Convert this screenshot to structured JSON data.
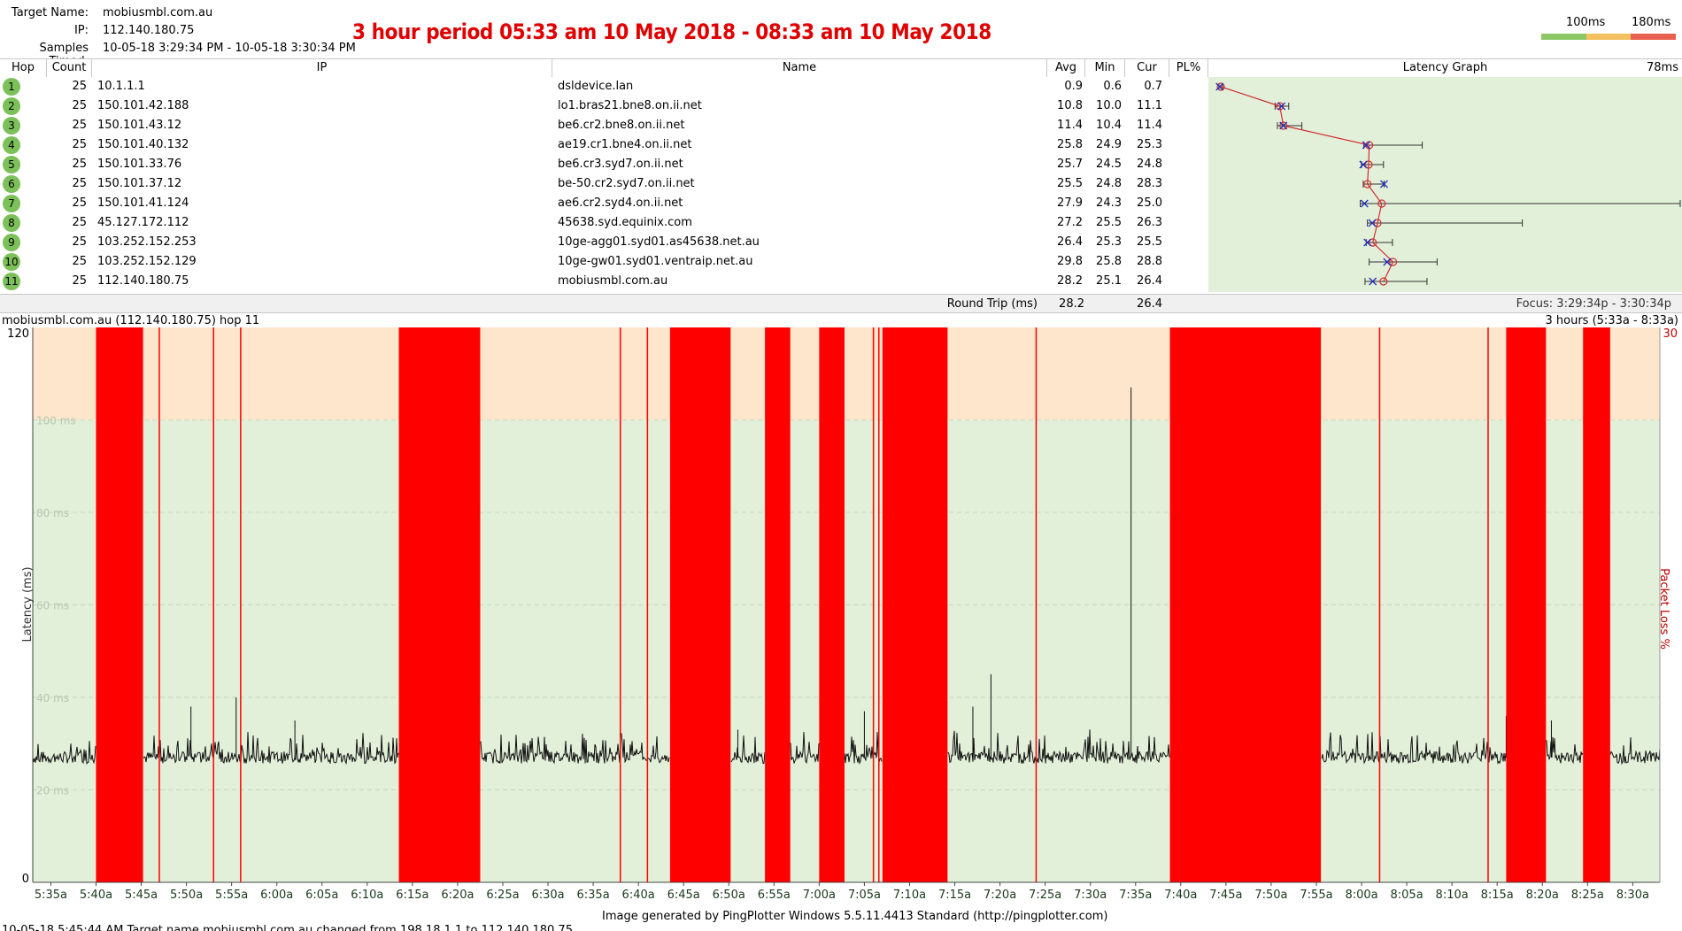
{
  "header": {
    "target_name_label": "Target Name:",
    "target_name": "mobiusmbl.com.au",
    "ip_label": "IP:",
    "ip": "112.140.180.75",
    "samples_label": "Samples Timed:",
    "samples": "10-05-18 3:29:34 PM - 10-05-18 3:30:34 PM",
    "period_text": "3 hour period 05:33 am 10 May 2018 - 08:33 am 10 May 2018",
    "legend_100": "100ms",
    "legend_180": "180ms",
    "legend_colors": [
      "#8cc866",
      "#f5c060",
      "#e86050"
    ]
  },
  "table": {
    "columns": {
      "hop": "Hop",
      "count": "Count",
      "ip": "IP",
      "name": "Name",
      "avg": "Avg",
      "min": "Min",
      "cur": "Cur",
      "pl": "PL%",
      "graph": "Latency Graph",
      "graph_scale": "78ms"
    },
    "rows": [
      {
        "hop": "1",
        "count": "25",
        "ip": "10.1.1.1",
        "name": "dsldevice.lan",
        "avg": "0.9",
        "min": "0.6",
        "cur": "0.7",
        "pl": ""
      },
      {
        "hop": "2",
        "count": "25",
        "ip": "150.101.42.188",
        "name": "lo1.bras21.bne8.on.ii.net",
        "avg": "10.8",
        "min": "10.0",
        "cur": "11.1",
        "pl": ""
      },
      {
        "hop": "3",
        "count": "25",
        "ip": "150.101.43.12",
        "name": "be6.cr2.bne8.on.ii.net",
        "avg": "11.4",
        "min": "10.4",
        "cur": "11.4",
        "pl": ""
      },
      {
        "hop": "4",
        "count": "25",
        "ip": "150.101.40.132",
        "name": "ae19.cr1.bne4.on.ii.net",
        "avg": "25.8",
        "min": "24.9",
        "cur": "25.3",
        "pl": ""
      },
      {
        "hop": "5",
        "count": "25",
        "ip": "150.101.33.76",
        "name": "be6.cr3.syd7.on.ii.net",
        "avg": "25.7",
        "min": "24.5",
        "cur": "24.8",
        "pl": ""
      },
      {
        "hop": "6",
        "count": "25",
        "ip": "150.101.37.12",
        "name": "be-50.cr2.syd7.on.ii.net",
        "avg": "25.5",
        "min": "24.8",
        "cur": "28.3",
        "pl": ""
      },
      {
        "hop": "7",
        "count": "25",
        "ip": "150.101.41.124",
        "name": "ae6.cr2.syd4.on.ii.net",
        "avg": "27.9",
        "min": "24.3",
        "cur": "25.0",
        "pl": ""
      },
      {
        "hop": "8",
        "count": "25",
        "ip": "45.127.172.112",
        "name": "45638.syd.equinix.com",
        "avg": "27.2",
        "min": "25.5",
        "cur": "26.3",
        "pl": ""
      },
      {
        "hop": "9",
        "count": "25",
        "ip": "103.252.152.253",
        "name": "10ge-agg01.syd01.as45638.net.au",
        "avg": "26.4",
        "min": "25.3",
        "cur": "25.5",
        "pl": ""
      },
      {
        "hop": "10",
        "count": "25",
        "ip": "103.252.152.129",
        "name": "10ge-gw01.syd01.ventraip.net.au",
        "avg": "29.8",
        "min": "25.8",
        "cur": "28.8",
        "pl": ""
      },
      {
        "hop": "11",
        "count": "25",
        "ip": "112.140.180.75",
        "name": "mobiusmbl.com.au",
        "avg": "28.2",
        "min": "25.1",
        "cur": "26.4",
        "pl": ""
      }
    ],
    "summary": {
      "label": "Round Trip (ms)",
      "avg": "28.2",
      "cur": "26.4",
      "focus": "Focus: 3:29:34p - 3:30:34p"
    }
  },
  "mini_graph": {
    "max_ms": 78,
    "hops": [
      {
        "avg": 0.9,
        "min": 0.6,
        "max": 1.2,
        "cur": 0.7
      },
      {
        "avg": 10.8,
        "min": 10.0,
        "max": 12.3,
        "cur": 11.1
      },
      {
        "avg": 11.4,
        "min": 10.4,
        "max": 14.5,
        "cur": 11.4
      },
      {
        "avg": 25.8,
        "min": 24.9,
        "max": 34.7,
        "cur": 25.3
      },
      {
        "avg": 25.7,
        "min": 24.5,
        "max": 28.2,
        "cur": 24.8
      },
      {
        "avg": 25.5,
        "min": 24.8,
        "max": 28.3,
        "cur": 28.3
      },
      {
        "avg": 27.9,
        "min": 24.3,
        "max": 78.0,
        "cur": 25.0
      },
      {
        "avg": 27.2,
        "min": 25.5,
        "max": 51.5,
        "cur": 26.3
      },
      {
        "avg": 26.4,
        "min": 25.3,
        "max": 29.7,
        "cur": 25.5
      },
      {
        "avg": 29.8,
        "min": 25.8,
        "max": 37.2,
        "cur": 28.8
      },
      {
        "avg": 28.2,
        "min": 25.1,
        "max": 35.5,
        "cur": 26.4
      }
    ]
  },
  "chart": {
    "title": "mobiusmbl.com.au (112.140.180.75) hop 11",
    "duration": "3 hours (5:33a - 8:33a)",
    "y_top_label": "120",
    "y_bottom_label": "0",
    "pl_top_label": "30",
    "ylabel": "Latency (ms)",
    "pl_label": "Packet Loss %",
    "footer": "Image generated by PingPlotter Windows 5.5.11.4413 Standard (http://pingplotter.com)",
    "log_text": "10-05-18 5:45:44 AM Target name mobiusmbl.com.au changed from 198.18.1.1 to 112.140.180.75"
  },
  "chart_data": {
    "type": "line",
    "title": "3 hour period 05:33 am 10 May 2018 - 08:33 am 10 May 2018",
    "xlabel": "",
    "ylabel": "Latency (ms)",
    "ylim": [
      0,
      120
    ],
    "y2label": "Packet Loss %",
    "y2lim": [
      0,
      30
    ],
    "x_ticks": [
      "5:35a",
      "5:40a",
      "5:45a",
      "5:50a",
      "5:55a",
      "6:00a",
      "6:05a",
      "6:10a",
      "6:15a",
      "6:20a",
      "6:25a",
      "6:30a",
      "6:35a",
      "6:40a",
      "6:45a",
      "6:50a",
      "6:55a",
      "7:00a",
      "7:05a",
      "7:10a",
      "7:15a",
      "7:20a",
      "7:25a",
      "7:30a",
      "7:35a",
      "7:40a",
      "7:45a",
      "7:50a",
      "7:55a",
      "8:00a",
      "8:05a",
      "8:10a",
      "8:15a",
      "8:20a",
      "8:25a",
      "8:30a"
    ],
    "y_gridlines": [
      "20 ms",
      "40 ms",
      "60 ms",
      "80 ms",
      "100 ms"
    ],
    "x_range_minutes": [
      33,
      213
    ],
    "threshold_ms": 100,
    "baseline_ms": 27,
    "loss_bands_minutes": [
      [
        40,
        45.2
      ],
      [
        73.5,
        82.5
      ],
      [
        103.5,
        110.2
      ],
      [
        114,
        116.8
      ],
      [
        120,
        122.8
      ],
      [
        127,
        134.2
      ],
      [
        158.8,
        175.5
      ],
      [
        196,
        200.4
      ],
      [
        204.5,
        207.5
      ]
    ],
    "loss_lines_minutes": [
      47,
      53,
      56,
      98,
      101,
      126,
      126.6,
      144,
      182,
      194
    ],
    "spikes": [
      [
        50.5,
        38
      ],
      [
        55.5,
        40
      ],
      [
        62,
        35
      ],
      [
        74,
        36
      ],
      [
        111,
        33
      ],
      [
        116,
        34
      ],
      [
        125,
        37
      ],
      [
        137,
        38
      ],
      [
        139,
        45
      ],
      [
        154.5,
        107
      ],
      [
        160,
        37
      ],
      [
        175,
        34
      ],
      [
        196,
        36
      ],
      [
        201,
        35
      ]
    ]
  },
  "x_tick_labels": [
    "5:35a",
    "5:40a",
    "5:45a",
    "5:50a",
    "5:55a",
    "6:00a",
    "6:05a",
    "6:10a",
    "6:15a",
    "6:20a",
    "6:25a",
    "6:30a",
    "6:35a",
    "6:40a",
    "6:45a",
    "6:50a",
    "6:55a",
    "7:00a",
    "7:05a",
    "7:10a",
    "7:15a",
    "7:20a",
    "7:25a",
    "7:30a",
    "7:35a",
    "7:40a",
    "7:45a",
    "7:50a",
    "7:55a",
    "8:00a",
    "8:05a",
    "8:10a",
    "8:15a",
    "8:20a",
    "8:25a",
    "8:30a"
  ]
}
